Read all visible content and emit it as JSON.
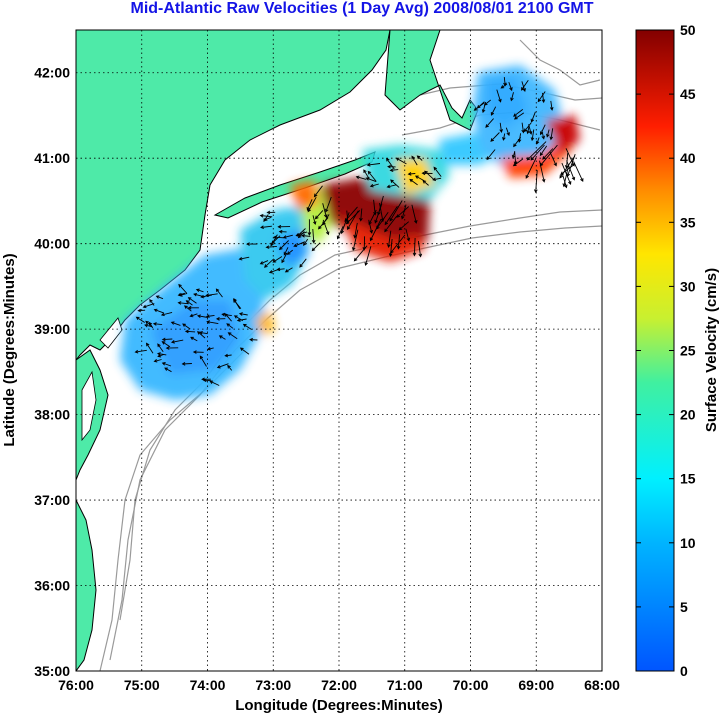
{
  "title": "Mid-Atlantic Raw Velocities (1 Day Avg) 2008/08/01 2100 GMT",
  "axes": {
    "xlabel": "Longitude (Degrees:Minutes)",
    "ylabel": "Latitude (Degrees:Minutes)",
    "xticks": [
      "76:00",
      "75:00",
      "74:00",
      "73:00",
      "72:00",
      "71:00",
      "70:00",
      "69:00",
      "68:00"
    ],
    "yticks": [
      "42:00",
      "41:00",
      "40:00",
      "39:00",
      "38:00",
      "37:00",
      "36:00",
      "35:00"
    ],
    "xlim": [
      -76,
      -68
    ],
    "ylim": [
      35,
      42.5
    ],
    "grid": "dotted"
  },
  "colorbar": {
    "label": "Surface Velocity (cm/s)",
    "ticks": [
      "50",
      "45",
      "40",
      "35",
      "30",
      "25",
      "20",
      "15",
      "10",
      "5",
      "0"
    ],
    "range": [
      0,
      50
    ],
    "colormap": "jet"
  },
  "colors": {
    "land": "#4eeaa8",
    "coast": "#000000",
    "bathymetry": "#9a9a9a",
    "grid": "#000000",
    "arrows": "#000000",
    "title": "#1414e6"
  },
  "chart_data": {
    "type": "heatmap",
    "title": "Mid-Atlantic Raw Velocities (1 Day Avg) 2008/08/01 2100 GMT",
    "xlabel": "Longitude (Degrees:Minutes)",
    "ylabel": "Latitude (Degrees:Minutes)",
    "colorbar_label": "Surface Velocity (cm/s)",
    "zlim": [
      0,
      50
    ],
    "regions": [
      {
        "lon": -74.3,
        "lat": 38.9,
        "speed": 8
      },
      {
        "lon": -74.0,
        "lat": 39.4,
        "speed": 6
      },
      {
        "lon": -73.6,
        "lat": 38.7,
        "speed": 9
      },
      {
        "lon": -73.3,
        "lat": 39.3,
        "speed": 18
      },
      {
        "lon": -72.9,
        "lat": 39.9,
        "speed": 10
      },
      {
        "lon": -72.5,
        "lat": 40.1,
        "speed": 28
      },
      {
        "lon": -71.6,
        "lat": 40.3,
        "speed": 45
      },
      {
        "lon": -71.0,
        "lat": 40.2,
        "speed": 48
      },
      {
        "lon": -71.3,
        "lat": 40.8,
        "speed": 14
      },
      {
        "lon": -69.5,
        "lat": 41.3,
        "speed": 10
      },
      {
        "lon": -69.0,
        "lat": 41.8,
        "speed": 8
      },
      {
        "lon": -68.8,
        "lat": 41.0,
        "speed": 45
      }
    ]
  }
}
